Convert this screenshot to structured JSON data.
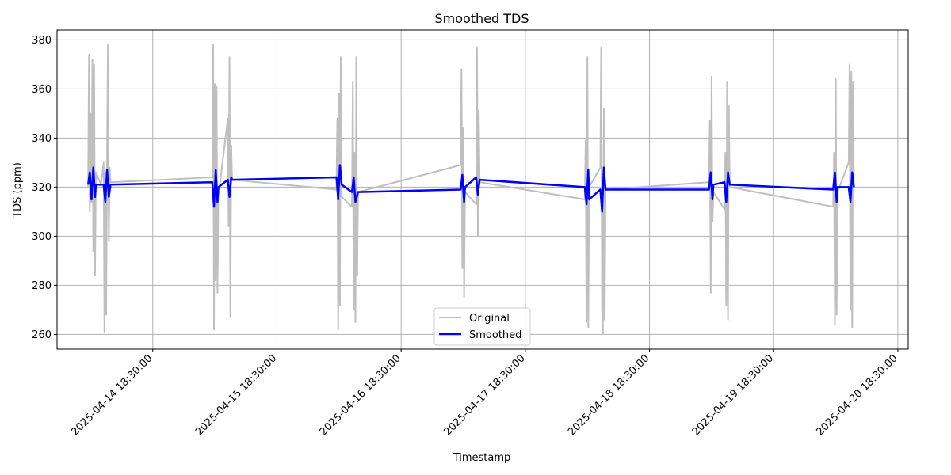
{
  "chart_data": {
    "type": "line",
    "title": "Smoothed TDS",
    "xlabel": "Timestamp",
    "ylabel": "TDS (ppm)",
    "x_range": [
      "2025-04-14T00:00:00",
      "2025-04-20T20:30:00"
    ],
    "ylim": [
      254,
      384
    ],
    "grid": true,
    "x_ticks": [
      "2025-04-14 18:30:00",
      "2025-04-15 18:30:00",
      "2025-04-16 18:30:00",
      "2025-04-17 18:30:00",
      "2025-04-18 18:30:00",
      "2025-04-19 18:30:00",
      "2025-04-20 18:30:00"
    ],
    "y_ticks": [
      260,
      280,
      300,
      320,
      340,
      360,
      380
    ],
    "legend": {
      "position": "bottom-center",
      "entries": [
        {
          "label": "Original",
          "color": "#bfbfbf"
        },
        {
          "label": "Smoothed",
          "color": "#0000ff"
        }
      ]
    },
    "series": [
      {
        "name": "Original",
        "color": "#bfbfbf",
        "points": [
          [
            "2025-04-14T06:00:00",
            320
          ],
          [
            "2025-04-14T06:10:00",
            374
          ],
          [
            "2025-04-14T06:20:00",
            310
          ],
          [
            "2025-04-14T06:30:00",
            350
          ],
          [
            "2025-04-14T06:40:00",
            314
          ],
          [
            "2025-04-14T06:50:00",
            372
          ],
          [
            "2025-04-14T07:00:00",
            294
          ],
          [
            "2025-04-14T07:10:00",
            370
          ],
          [
            "2025-04-14T07:20:00",
            284
          ],
          [
            "2025-04-14T07:30:00",
            326
          ],
          [
            "2025-04-14T08:30:00",
            321
          ],
          [
            "2025-04-14T09:00:00",
            330
          ],
          [
            "2025-04-14T09:10:00",
            261
          ],
          [
            "2025-04-14T09:20:00",
            326
          ],
          [
            "2025-04-14T09:30:00",
            268
          ],
          [
            "2025-04-14T09:40:00",
            334
          ],
          [
            "2025-04-14T09:50:00",
            378
          ],
          [
            "2025-04-14T10:00:00",
            298
          ],
          [
            "2025-04-14T10:10:00",
            328
          ],
          [
            "2025-04-14T10:20:00",
            322
          ],
          [
            "2025-04-15T06:00:00",
            324
          ],
          [
            "2025-04-15T06:10:00",
            378
          ],
          [
            "2025-04-15T06:20:00",
            262
          ],
          [
            "2025-04-15T06:30:00",
            362
          ],
          [
            "2025-04-15T06:40:00",
            282
          ],
          [
            "2025-04-15T06:50:00",
            361
          ],
          [
            "2025-04-15T07:00:00",
            277
          ],
          [
            "2025-04-15T07:10:00",
            316
          ],
          [
            "2025-04-15T09:00:00",
            348
          ],
          [
            "2025-04-15T09:10:00",
            304
          ],
          [
            "2025-04-15T09:20:00",
            373
          ],
          [
            "2025-04-15T09:30:00",
            267
          ],
          [
            "2025-04-15T09:40:00",
            337
          ],
          [
            "2025-04-15T09:50:00",
            323
          ],
          [
            "2025-04-16T06:00:00",
            319
          ],
          [
            "2025-04-16T06:10:00",
            348
          ],
          [
            "2025-04-16T06:20:00",
            262
          ],
          [
            "2025-04-16T06:30:00",
            358
          ],
          [
            "2025-04-16T06:40:00",
            272
          ],
          [
            "2025-04-16T06:50:00",
            373
          ],
          [
            "2025-04-16T07:00:00",
            316
          ],
          [
            "2025-04-16T09:00:00",
            312
          ],
          [
            "2025-04-16T09:10:00",
            363
          ],
          [
            "2025-04-16T09:20:00",
            270
          ],
          [
            "2025-04-16T09:30:00",
            334
          ],
          [
            "2025-04-16T09:40:00",
            265
          ],
          [
            "2025-04-16T09:50:00",
            373
          ],
          [
            "2025-04-16T10:00:00",
            284
          ],
          [
            "2025-04-16T10:10:00",
            318
          ],
          [
            "2025-04-17T06:00:00",
            329
          ],
          [
            "2025-04-17T06:10:00",
            368
          ],
          [
            "2025-04-17T06:20:00",
            287
          ],
          [
            "2025-04-17T06:30:00",
            344
          ],
          [
            "2025-04-17T06:40:00",
            275
          ],
          [
            "2025-04-17T06:50:00",
            318
          ],
          [
            "2025-04-17T09:00:00",
            313
          ],
          [
            "2025-04-17T09:10:00",
            377
          ],
          [
            "2025-04-17T09:20:00",
            300
          ],
          [
            "2025-04-17T09:30:00",
            351
          ],
          [
            "2025-04-17T09:40:00",
            322
          ],
          [
            "2025-04-18T06:00:00",
            315
          ],
          [
            "2025-04-18T06:10:00",
            339
          ],
          [
            "2025-04-18T06:20:00",
            265
          ],
          [
            "2025-04-18T06:30:00",
            373
          ],
          [
            "2025-04-18T06:40:00",
            263
          ],
          [
            "2025-04-18T06:50:00",
            320
          ],
          [
            "2025-04-18T09:00:00",
            328
          ],
          [
            "2025-04-18T09:10:00",
            377
          ],
          [
            "2025-04-18T09:20:00",
            271
          ],
          [
            "2025-04-18T09:30:00",
            260
          ],
          [
            "2025-04-18T09:40:00",
            352
          ],
          [
            "2025-04-18T09:50:00",
            266
          ],
          [
            "2025-04-18T10:00:00",
            319
          ],
          [
            "2025-04-19T06:00:00",
            322
          ],
          [
            "2025-04-19T06:10:00",
            347
          ],
          [
            "2025-04-19T06:20:00",
            277
          ],
          [
            "2025-04-19T06:30:00",
            365
          ],
          [
            "2025-04-19T06:40:00",
            306
          ],
          [
            "2025-04-19T06:50:00",
            318
          ],
          [
            "2025-04-19T09:00:00",
            311
          ],
          [
            "2025-04-19T09:10:00",
            334
          ],
          [
            "2025-04-19T09:20:00",
            272
          ],
          [
            "2025-04-19T09:30:00",
            363
          ],
          [
            "2025-04-19T09:40:00",
            266
          ],
          [
            "2025-04-19T09:50:00",
            353
          ],
          [
            "2025-04-19T10:00:00",
            320
          ],
          [
            "2025-04-20T06:00:00",
            312
          ],
          [
            "2025-04-20T06:10:00",
            334
          ],
          [
            "2025-04-20T06:20:00",
            264
          ],
          [
            "2025-04-20T06:30:00",
            364
          ],
          [
            "2025-04-20T06:40:00",
            268
          ],
          [
            "2025-04-20T06:50:00",
            318
          ],
          [
            "2025-04-20T09:00:00",
            330
          ],
          [
            "2025-04-20T09:10:00",
            370
          ],
          [
            "2025-04-20T09:20:00",
            270
          ],
          [
            "2025-04-20T09:30:00",
            367
          ],
          [
            "2025-04-20T09:40:00",
            263
          ],
          [
            "2025-04-20T09:50:00",
            363
          ],
          [
            "2025-04-20T10:00:00",
            320
          ]
        ]
      },
      {
        "name": "Smoothed",
        "color": "#0000ff",
        "points": [
          [
            "2025-04-14T06:00:00",
            321
          ],
          [
            "2025-04-14T06:20:00",
            326
          ],
          [
            "2025-04-14T06:40:00",
            315
          ],
          [
            "2025-04-14T07:00:00",
            328
          ],
          [
            "2025-04-14T07:20:00",
            316
          ],
          [
            "2025-04-14T07:30:00",
            321
          ],
          [
            "2025-04-14T09:00:00",
            321
          ],
          [
            "2025-04-14T09:20:00",
            314
          ],
          [
            "2025-04-14T09:40:00",
            327
          ],
          [
            "2025-04-14T10:00:00",
            316
          ],
          [
            "2025-04-14T10:20:00",
            321
          ],
          [
            "2025-04-15T06:00:00",
            322
          ],
          [
            "2025-04-15T06:20:00",
            312
          ],
          [
            "2025-04-15T06:40:00",
            327
          ],
          [
            "2025-04-15T07:00:00",
            314
          ],
          [
            "2025-04-15T07:10:00",
            320
          ],
          [
            "2025-04-15T09:00:00",
            323
          ],
          [
            "2025-04-15T09:20:00",
            316
          ],
          [
            "2025-04-15T09:40:00",
            324
          ],
          [
            "2025-04-15T09:50:00",
            323
          ],
          [
            "2025-04-16T06:00:00",
            324
          ],
          [
            "2025-04-16T06:20:00",
            315
          ],
          [
            "2025-04-16T06:40:00",
            329
          ],
          [
            "2025-04-16T07:00:00",
            321
          ],
          [
            "2025-04-16T09:00:00",
            318
          ],
          [
            "2025-04-16T09:20:00",
            324
          ],
          [
            "2025-04-16T09:40:00",
            314
          ],
          [
            "2025-04-16T10:10:00",
            318
          ],
          [
            "2025-04-17T06:00:00",
            319
          ],
          [
            "2025-04-17T06:20:00",
            325
          ],
          [
            "2025-04-17T06:40:00",
            314
          ],
          [
            "2025-04-17T06:50:00",
            320
          ],
          [
            "2025-04-17T09:00:00",
            324
          ],
          [
            "2025-04-17T09:20:00",
            317
          ],
          [
            "2025-04-17T09:40:00",
            323
          ],
          [
            "2025-04-18T06:00:00",
            320
          ],
          [
            "2025-04-18T06:20:00",
            313
          ],
          [
            "2025-04-18T06:40:00",
            327
          ],
          [
            "2025-04-18T06:50:00",
            315
          ],
          [
            "2025-04-18T09:00:00",
            319
          ],
          [
            "2025-04-18T09:20:00",
            310
          ],
          [
            "2025-04-18T09:40:00",
            328
          ],
          [
            "2025-04-18T10:00:00",
            319
          ],
          [
            "2025-04-19T06:00:00",
            319
          ],
          [
            "2025-04-19T06:20:00",
            326
          ],
          [
            "2025-04-19T06:40:00",
            315
          ],
          [
            "2025-04-19T06:50:00",
            321
          ],
          [
            "2025-04-19T09:00:00",
            322
          ],
          [
            "2025-04-19T09:20:00",
            314
          ],
          [
            "2025-04-19T09:40:00",
            326
          ],
          [
            "2025-04-19T10:00:00",
            321
          ],
          [
            "2025-04-20T06:00:00",
            319
          ],
          [
            "2025-04-20T06:20:00",
            326
          ],
          [
            "2025-04-20T06:40:00",
            314
          ],
          [
            "2025-04-20T06:50:00",
            320
          ],
          [
            "2025-04-20T09:00:00",
            320
          ],
          [
            "2025-04-20T09:20:00",
            314
          ],
          [
            "2025-04-20T09:40:00",
            326
          ],
          [
            "2025-04-20T10:00:00",
            320
          ]
        ]
      }
    ]
  }
}
